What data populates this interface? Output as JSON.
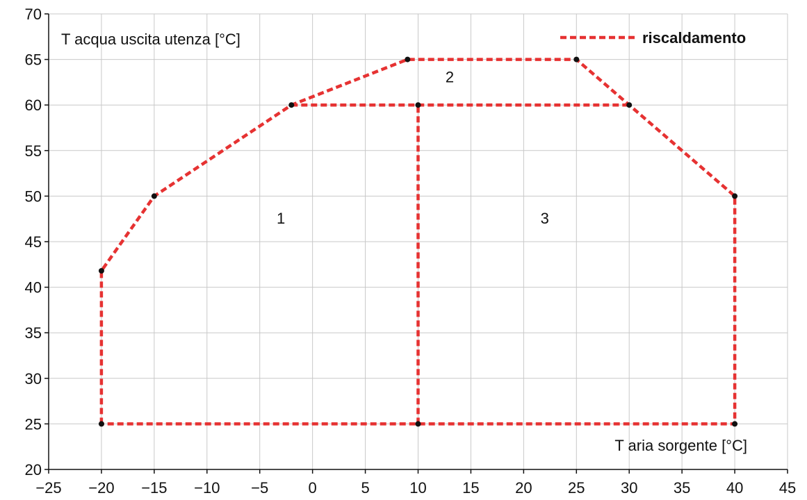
{
  "chart_data": {
    "type": "line",
    "title": "",
    "xlabel": "T aria sorgente [°C]",
    "ylabel": "T acqua uscita utenza [°C]",
    "xlim": [
      -25,
      45
    ],
    "ylim": [
      20,
      70
    ],
    "xticks": [
      -25,
      -20,
      -15,
      -10,
      -5,
      0,
      5,
      10,
      15,
      20,
      25,
      30,
      35,
      40,
      45
    ],
    "yticks": [
      20,
      25,
      30,
      35,
      40,
      45,
      50,
      55,
      60,
      65,
      70
    ],
    "grid": true,
    "legend_position": "top-right",
    "series_color": "#e63232",
    "series": [
      {
        "name": "riscaldamento",
        "segments": [
          [
            [
              -20,
              25
            ],
            [
              -20,
              41.8
            ],
            [
              -15,
              50
            ],
            [
              -2,
              60
            ],
            [
              9,
              65
            ],
            [
              25,
              65
            ],
            [
              30,
              60
            ],
            [
              40,
              50
            ],
            [
              40,
              25
            ],
            [
              -20,
              25
            ]
          ],
          [
            [
              -2,
              60
            ],
            [
              30,
              60
            ]
          ],
          [
            [
              10,
              25
            ],
            [
              10,
              60
            ]
          ]
        ],
        "points": [
          [
            -20,
            25
          ],
          [
            -20,
            41.8
          ],
          [
            -15,
            50
          ],
          [
            -2,
            60
          ],
          [
            9,
            65
          ],
          [
            25,
            65
          ],
          [
            30,
            60
          ],
          [
            40,
            50
          ],
          [
            40,
            25
          ],
          [
            10,
            25
          ],
          [
            10,
            60
          ]
        ]
      }
    ],
    "annotations": [
      {
        "text": "1",
        "x": -3,
        "y": 47
      },
      {
        "text": "2",
        "x": 13,
        "y": 62.5
      },
      {
        "text": "3",
        "x": 22,
        "y": 47
      }
    ]
  }
}
